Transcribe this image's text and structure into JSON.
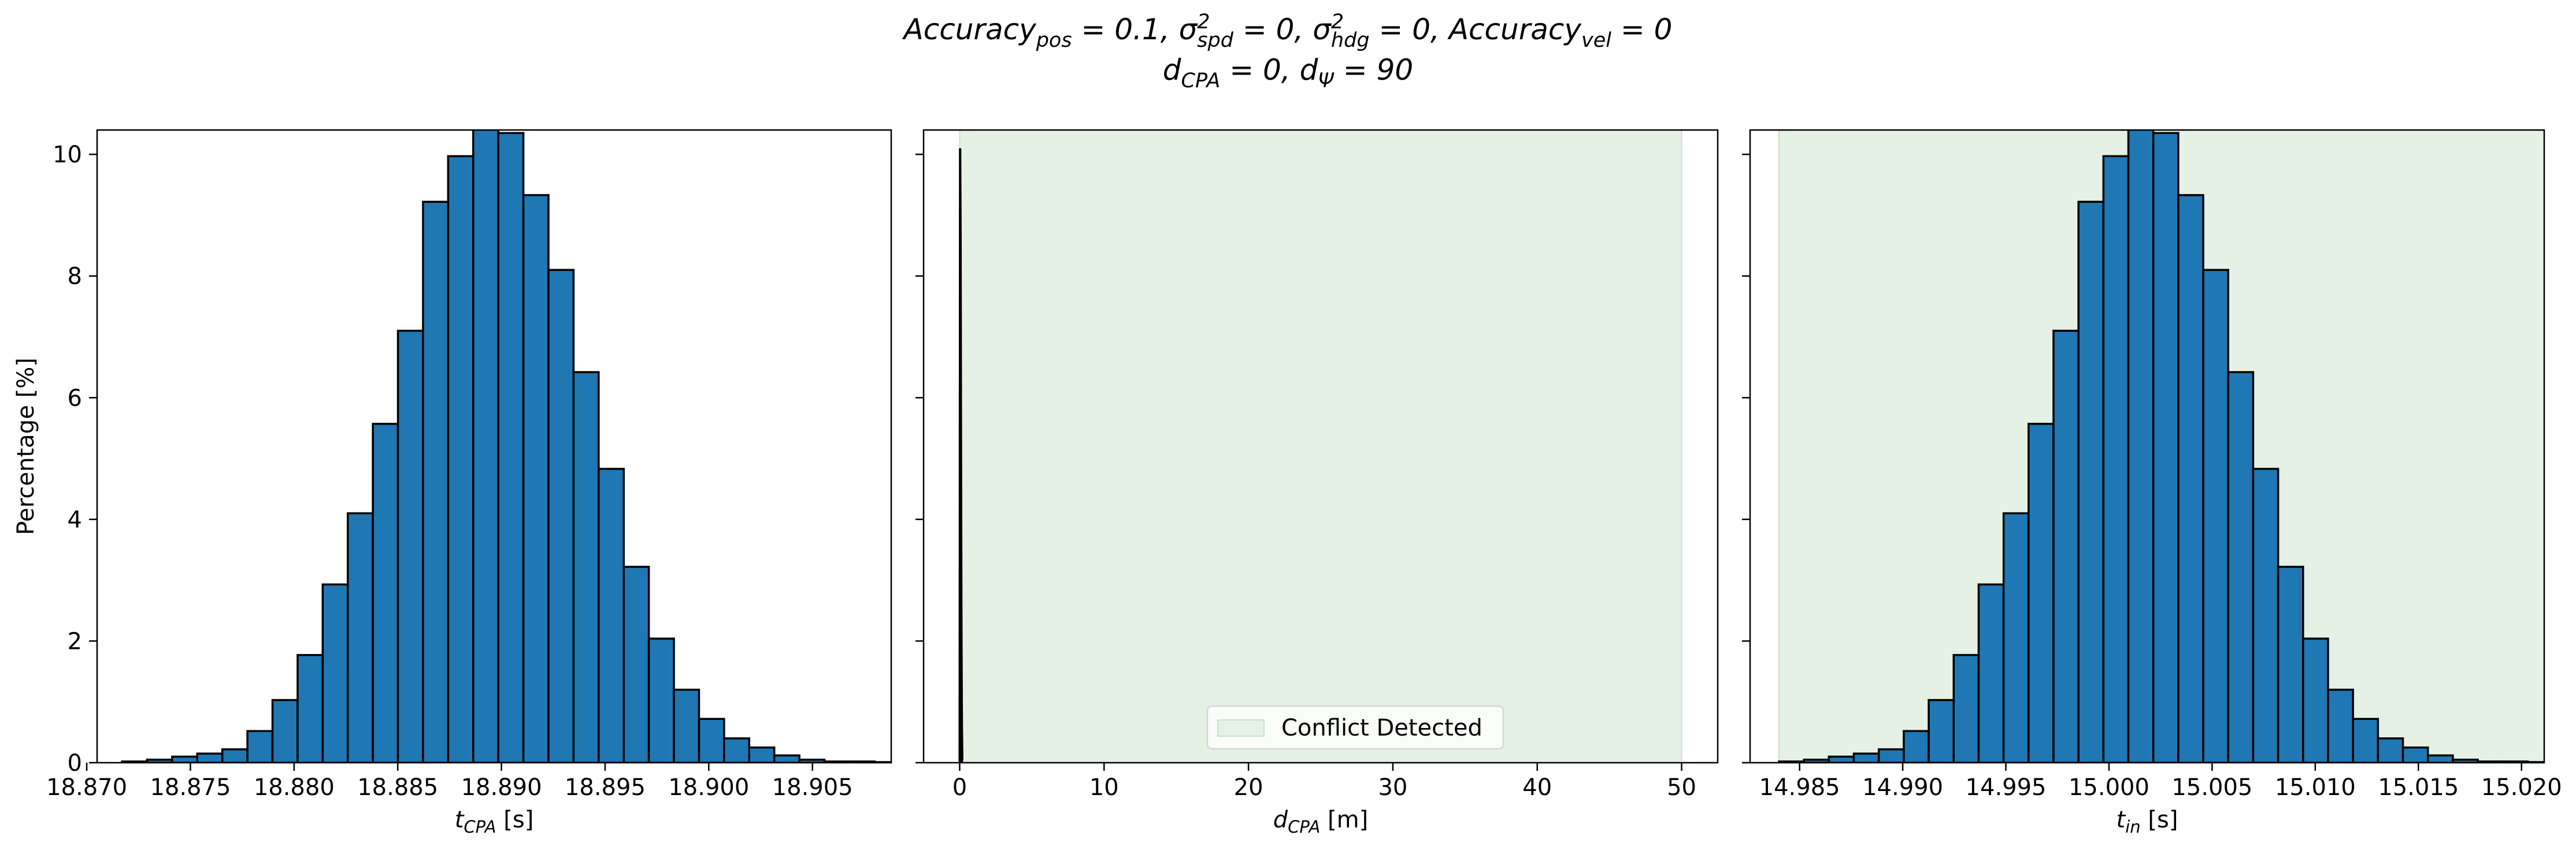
{
  "title": {
    "line1": "Accuracy_pos = 0.1, σ²_spd = 0, σ²_hdg = 0, Accuracy_vel = 0",
    "line2": "d_CPA = 0, d_Ψ = 90"
  },
  "colors": {
    "bar_fill": "#1f77b4",
    "bar_edge": "#000000",
    "conflict_fill": "#e5f1e5"
  },
  "chart_data": [
    {
      "type": "bar",
      "subtype": "histogram",
      "xlabel": "t_CPA [s]",
      "ylabel": "Percentage [%]",
      "xlim": [
        18.8705,
        18.9088
      ],
      "ylim": [
        0,
        10.4
      ],
      "xticks": [
        "18.870",
        "18.875",
        "18.880",
        "18.885",
        "18.890",
        "18.895",
        "18.900",
        "18.905"
      ],
      "xtick_values": [
        18.87,
        18.875,
        18.88,
        18.885,
        18.89,
        18.895,
        18.9,
        18.905
      ],
      "yticks": [
        "0",
        "2",
        "4",
        "6",
        "8",
        "10"
      ],
      "ytick_values": [
        0,
        2,
        4,
        6,
        8,
        10
      ],
      "bin_start": 18.8717,
      "bin_width": 0.00121,
      "values": [
        0.02,
        0.05,
        0.1,
        0.15,
        0.22,
        0.52,
        1.03,
        1.77,
        2.93,
        4.1,
        5.57,
        7.1,
        9.22,
        9.97,
        10.6,
        10.35,
        9.33,
        8.1,
        6.42,
        4.83,
        3.22,
        2.04,
        1.2,
        0.72,
        0.4,
        0.25,
        0.12,
        0.05,
        0.02,
        0.02,
        0.01
      ]
    },
    {
      "type": "area",
      "xlabel": "d_CPA [m]",
      "xlim": [
        -2.5,
        52.5
      ],
      "ylim": [
        0,
        10.4
      ],
      "xticks": [
        "0",
        "10",
        "20",
        "30",
        "40",
        "50"
      ],
      "xtick_values": [
        0,
        10,
        20,
        30,
        40,
        50
      ],
      "conflict_region": [
        0,
        50
      ],
      "spike": {
        "x": [
          0.0,
          0.03,
          0.06,
          0.09,
          0.12,
          0.15,
          0.18
        ],
        "values": [
          0.02,
          10.1,
          8.7,
          5.0,
          2.1,
          0.6,
          0.05
        ]
      },
      "legend": {
        "label": "Conflict Detected",
        "position": "lower-center"
      }
    },
    {
      "type": "bar",
      "subtype": "histogram",
      "xlabel": "t_in [s]",
      "xlim": [
        14.9826,
        15.0211
      ],
      "ylim": [
        0,
        10.4
      ],
      "xticks": [
        "14.985",
        "14.990",
        "14.995",
        "15.000",
        "15.005",
        "15.010",
        "15.015",
        "15.020"
      ],
      "xtick_values": [
        14.985,
        14.99,
        14.995,
        15.0,
        15.005,
        15.01,
        15.015,
        15.02
      ],
      "conflict_region": [
        14.984,
        15.0211
      ],
      "bin_start": 14.984,
      "bin_width": 0.00121,
      "values": [
        0.02,
        0.05,
        0.1,
        0.15,
        0.22,
        0.52,
        1.03,
        1.77,
        2.93,
        4.1,
        5.57,
        7.1,
        9.22,
        9.97,
        10.6,
        10.35,
        9.33,
        8.1,
        6.42,
        4.83,
        3.22,
        2.04,
        1.2,
        0.72,
        0.4,
        0.25,
        0.12,
        0.05,
        0.02,
        0.02,
        0.01
      ]
    }
  ]
}
